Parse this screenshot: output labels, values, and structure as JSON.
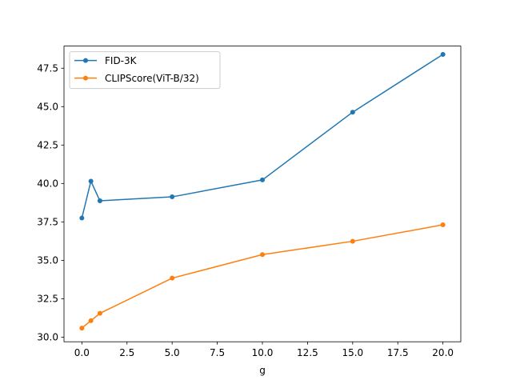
{
  "chart_data": {
    "type": "line",
    "title": "",
    "xlabel": "g",
    "ylabel": "",
    "xlim": [
      -0.99,
      20.99
    ],
    "ylim": [
      29.7,
      48.94
    ],
    "xticks": [
      0.0,
      2.5,
      5.0,
      7.5,
      10.0,
      12.5,
      15.0,
      17.5,
      20.0
    ],
    "xtick_labels": [
      "0.0",
      "2.5",
      "5.0",
      "7.5",
      "10.0",
      "12.5",
      "15.0",
      "17.5",
      "20.0"
    ],
    "yticks": [
      30.0,
      32.5,
      35.0,
      37.5,
      40.0,
      42.5,
      45.0,
      47.5
    ],
    "ytick_labels": [
      "30.0",
      "32.5",
      "35.0",
      "37.5",
      "40.0",
      "42.5",
      "45.0",
      "47.5"
    ],
    "grid": false,
    "legend": "top-left",
    "x": [
      0,
      0.5,
      1,
      5,
      10,
      15,
      20
    ],
    "series": [
      {
        "name": "FID-3K",
        "color": "#1f77b4",
        "values": [
          37.75,
          40.15,
          38.87,
          39.13,
          40.23,
          44.64,
          48.4
        ]
      },
      {
        "name": "CLIPScore(ViT-B/32)",
        "color": "#ff7f0e",
        "values": [
          30.59,
          31.07,
          31.55,
          33.84,
          35.37,
          36.24,
          37.31
        ]
      }
    ]
  }
}
